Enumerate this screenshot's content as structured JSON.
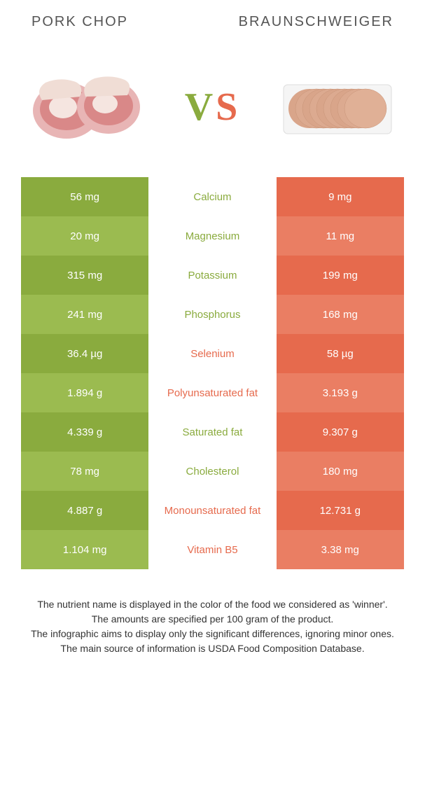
{
  "header": {
    "left": "PORK CHOP",
    "right": "BRAUNSCHWEIGER"
  },
  "vs": {
    "v": "V",
    "s": "S"
  },
  "colors": {
    "green_dark": "#8aab3e",
    "green_light": "#9bbb50",
    "orange_dark": "#e66a4d",
    "orange_light": "#ea7e63"
  },
  "rows": [
    {
      "left": "56 mg",
      "mid": "Calcium",
      "right": "9 mg",
      "winner": "green"
    },
    {
      "left": "20 mg",
      "mid": "Magnesium",
      "right": "11 mg",
      "winner": "green"
    },
    {
      "left": "315 mg",
      "mid": "Potassium",
      "right": "199 mg",
      "winner": "green"
    },
    {
      "left": "241 mg",
      "mid": "Phosphorus",
      "right": "168 mg",
      "winner": "green"
    },
    {
      "left": "36.4 µg",
      "mid": "Selenium",
      "right": "58 µg",
      "winner": "orange"
    },
    {
      "left": "1.894 g",
      "mid": "Polyunsaturated fat",
      "right": "3.193 g",
      "winner": "orange"
    },
    {
      "left": "4.339 g",
      "mid": "Saturated fat",
      "right": "9.307 g",
      "winner": "green"
    },
    {
      "left": "78 mg",
      "mid": "Cholesterol",
      "right": "180 mg",
      "winner": "green"
    },
    {
      "left": "4.887 g",
      "mid": "Monounsaturated fat",
      "right": "12.731 g",
      "winner": "orange"
    },
    {
      "left": "1.104 mg",
      "mid": "Vitamin B5",
      "right": "3.38 mg",
      "winner": "orange"
    }
  ],
  "footer": {
    "l1": "The nutrient name is displayed in the color of the food we considered as 'winner'.",
    "l2": "The amounts are specified per 100 gram of the product.",
    "l3": "The infographic aims to display only the significant differences, ignoring minor ones.",
    "l4": "The main source of information is USDA Food Composition Database."
  }
}
